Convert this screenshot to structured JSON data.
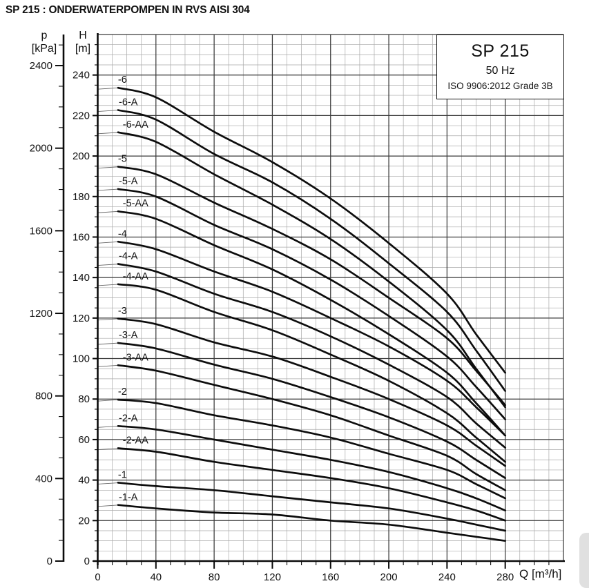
{
  "header": {
    "title": "SP 215 : ONDERWATERPOMPEN IN RVS AISI 304"
  },
  "legend": {
    "model": "SP 215",
    "frequency": "50 Hz",
    "standard": "ISO 9906:2012 Grade 3B"
  },
  "axes": {
    "pressure": {
      "label": "p",
      "unit": "[kPa]",
      "ticks": [
        0,
        400,
        800,
        1200,
        1600,
        2000,
        2400
      ]
    },
    "head": {
      "label": "H",
      "unit": "[m]",
      "ticks": [
        0,
        20,
        40,
        60,
        80,
        100,
        120,
        140,
        160,
        180,
        200,
        220,
        240
      ]
    },
    "flow": {
      "label": "Q [m³/h]",
      "ticks": [
        0,
        40,
        80,
        120,
        160,
        200,
        240,
        280
      ]
    }
  },
  "colors": {
    "background": "#ffffff",
    "text": "#111111",
    "axis": "#0a0a0a",
    "curve": "#0d0d0d",
    "grid_major": "#3a3a3a",
    "grid_minor": "#a8a8a8",
    "leader": "#666666"
  },
  "chart_data": {
    "type": "line",
    "title": "SP 215 submersible pump performance curves, 50 Hz",
    "xlabel": "Q [m³/h]",
    "ylabel": "H [m]",
    "y2label": "p [kPa]",
    "xlim": [
      0,
      320
    ],
    "ylim": [
      0,
      260
    ],
    "kpa_per_m": 9.81,
    "grid": {
      "x_minor": 10,
      "x_major": 40,
      "y_minor": 5,
      "y_major": 20
    },
    "legend_position": "top-right box",
    "x": [
      0,
      40,
      80,
      120,
      160,
      200,
      240,
      260,
      280
    ],
    "series": [
      {
        "name": "-6",
        "label_q": 17,
        "values": [
          233,
          229,
          212,
          197,
          179,
          157,
          132,
          112,
          93
        ]
      },
      {
        "name": "-6-A",
        "label_q": 21,
        "values": [
          222,
          218,
          201,
          187,
          169,
          147,
          123,
          104,
          84
        ]
      },
      {
        "name": "-6-AA",
        "label_q": 26,
        "values": [
          211,
          207,
          191,
          176,
          159,
          138,
          114,
          95,
          76
        ]
      },
      {
        "name": "-5",
        "label_q": 17,
        "values": [
          194,
          191,
          177,
          164,
          149,
          130,
          110,
          94,
          77
        ]
      },
      {
        "name": "-5-A",
        "label_q": 21,
        "values": [
          183,
          180,
          166,
          154,
          139,
          121,
          101,
          86,
          70
        ]
      },
      {
        "name": "-5-AA",
        "label_q": 26,
        "values": [
          172,
          169,
          156,
          144,
          129,
          112,
          93,
          78,
          62
        ]
      },
      {
        "name": "-4",
        "label_q": 17,
        "values": [
          157,
          154,
          143,
          133,
          120,
          106,
          89,
          76,
          62
        ]
      },
      {
        "name": "-4-A",
        "label_q": 21,
        "values": [
          146,
          143,
          132,
          123,
          111,
          97,
          81,
          68,
          56
        ]
      },
      {
        "name": "-4-AA",
        "label_q": 26,
        "values": [
          136,
          134,
          123,
          114,
          102,
          89,
          73,
          61,
          49
        ]
      },
      {
        "name": "-3",
        "label_q": 17,
        "values": [
          119,
          117,
          108,
          101,
          91,
          80,
          67,
          57,
          47
        ]
      },
      {
        "name": "-3-A",
        "label_q": 21,
        "values": [
          107,
          105,
          97,
          90,
          81,
          71,
          59,
          50,
          41
        ]
      },
      {
        "name": "-3-AA",
        "label_q": 26,
        "values": [
          96,
          94,
          87,
          80,
          72,
          62,
          52,
          43,
          35
        ]
      },
      {
        "name": "-2",
        "label_q": 17,
        "values": [
          79,
          78,
          72,
          67,
          61,
          53,
          45,
          38,
          31
        ]
      },
      {
        "name": "-2-A",
        "label_q": 21,
        "values": [
          66,
          65,
          60,
          55,
          50,
          44,
          36,
          31,
          25
        ]
      },
      {
        "name": "-2-AA",
        "label_q": 26,
        "values": [
          55,
          54,
          49,
          45,
          41,
          36,
          29,
          25,
          20
        ]
      },
      {
        "name": "-1",
        "label_q": 17,
        "values": [
          38,
          37,
          35,
          32,
          29,
          26,
          21,
          18,
          15
        ]
      },
      {
        "name": "-1-A",
        "label_q": 21,
        "values": [
          27,
          26,
          24,
          23,
          20,
          18,
          14,
          12,
          10
        ]
      }
    ]
  }
}
